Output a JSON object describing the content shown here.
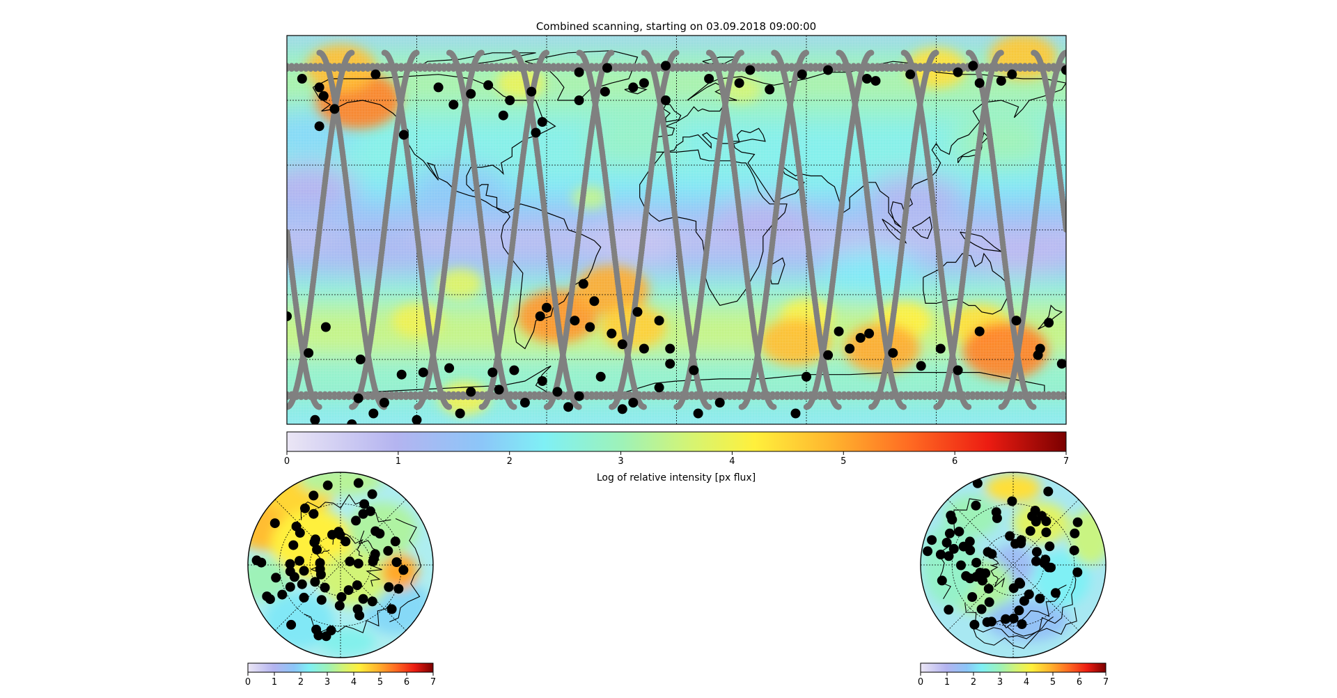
{
  "chart_data": [
    {
      "type": "heatmap",
      "projection": "equirectangular",
      "title": "Combined scanning, starting on 03.09.2018 09:00:00",
      "lon_range": [
        -180,
        180
      ],
      "lat_range": [
        -90,
        90
      ],
      "meridians": [
        -120,
        -60,
        0,
        60,
        120
      ],
      "parallels": [
        -60,
        -30,
        0,
        30,
        60
      ],
      "grid": true,
      "colormap": "jet (white-blended)",
      "colorbar": {
        "label": "Log of relative intensity [px flux]",
        "ticks": [
          "0",
          "1",
          "2",
          "3",
          "4",
          "5",
          "6",
          "7"
        ],
        "range": [
          0,
          7
        ],
        "placement": "bottom"
      },
      "intensity_blobs": [
        {
          "lon": -55,
          "lat": -40,
          "value": 5.2
        },
        {
          "lon": -30,
          "lat": -28,
          "value": 5.0
        },
        {
          "lon": -20,
          "lat": -45,
          "value": 4.6
        },
        {
          "lon": -120,
          "lat": -42,
          "value": 4.0
        },
        {
          "lon": 60,
          "lat": -40,
          "value": 4.1
        },
        {
          "lon": 105,
          "lat": -42,
          "value": 4.2
        },
        {
          "lon": 140,
          "lat": -44,
          "value": 4.4
        },
        {
          "lon": 55,
          "lat": -52,
          "value": 4.8
        },
        {
          "lon": 95,
          "lat": -55,
          "value": 5.0
        },
        {
          "lon": 152,
          "lat": -56,
          "value": 5.4
        },
        {
          "lon": -147,
          "lat": 60,
          "value": 5.4
        },
        {
          "lon": -155,
          "lat": 75,
          "value": 4.8
        },
        {
          "lon": -72,
          "lat": 68,
          "value": 3.9
        },
        {
          "lon": 120,
          "lat": 75,
          "value": 4.4
        },
        {
          "lon": 160,
          "lat": 80,
          "value": 4.7
        },
        {
          "lon": -40,
          "lat": 15,
          "value": 3.4
        },
        {
          "lon": 30,
          "lat": 65,
          "value": 3.6
        },
        {
          "lon": -100,
          "lat": -25,
          "value": 3.8
        },
        {
          "lon": -98,
          "lat": -78,
          "value": 4.0
        }
      ],
      "ground_track": {
        "color": "#808080",
        "passes": 12,
        "inclination_deg": 82
      },
      "detections": [
        [
          -173,
          70
        ],
        [
          -163,
          62
        ],
        [
          -158,
          56
        ],
        [
          -165,
          48
        ],
        [
          -126,
          44
        ],
        [
          -139,
          72
        ],
        [
          -110,
          66
        ],
        [
          -95,
          63
        ],
        [
          -103,
          58
        ],
        [
          -87,
          67
        ],
        [
          -67,
          64
        ],
        [
          -77,
          60
        ],
        [
          -65,
          45
        ],
        [
          -80,
          53
        ],
        [
          -62,
          50
        ],
        [
          -45,
          73
        ],
        [
          -32,
          75
        ],
        [
          -20,
          66
        ],
        [
          -15,
          68
        ],
        [
          -5,
          76
        ],
        [
          15,
          70
        ],
        [
          29,
          68
        ],
        [
          34,
          74
        ],
        [
          43,
          65
        ],
        [
          -33,
          64
        ],
        [
          -5,
          60
        ],
        [
          58,
          72
        ],
        [
          70,
          74
        ],
        [
          88,
          70
        ],
        [
          92,
          69
        ],
        [
          108,
          72
        ],
        [
          130,
          73
        ],
        [
          140,
          68
        ],
        [
          150,
          69
        ],
        [
          180,
          74
        ],
        [
          137,
          76
        ],
        [
          155,
          72
        ],
        [
          -165,
          66
        ],
        [
          -45,
          60
        ],
        [
          -180,
          -40
        ],
        [
          -162,
          -45
        ],
        [
          -170,
          -57
        ],
        [
          -146,
          -60
        ],
        [
          -127,
          -67
        ],
        [
          -147,
          -78
        ],
        [
          -135,
          -80
        ],
        [
          -117,
          -66
        ],
        [
          -105,
          -64
        ],
        [
          -63,
          -40
        ],
        [
          -47,
          -42
        ],
        [
          -43,
          -25
        ],
        [
          -38,
          -33
        ],
        [
          -60,
          -36
        ],
        [
          -30,
          -48
        ],
        [
          -25,
          -53
        ],
        [
          -18,
          -38
        ],
        [
          -8,
          -42
        ],
        [
          -15,
          -55
        ],
        [
          -3,
          -55
        ],
        [
          -40,
          -45
        ],
        [
          -35,
          -68
        ],
        [
          -62,
          -70
        ],
        [
          -75,
          -65
        ],
        [
          -85,
          -66
        ],
        [
          -95,
          -75
        ],
        [
          -82,
          -74
        ],
        [
          -55,
          -75
        ],
        [
          -45,
          -77
        ],
        [
          -8,
          -73
        ],
        [
          -20,
          -80
        ],
        [
          8,
          -65
        ],
        [
          -3,
          -62
        ],
        [
          20,
          -80
        ],
        [
          60,
          -68
        ],
        [
          80,
          -55
        ],
        [
          85,
          -50
        ],
        [
          89,
          -48
        ],
        [
          100,
          -57
        ],
        [
          113,
          -63
        ],
        [
          122,
          -55
        ],
        [
          140,
          -47
        ],
        [
          157,
          -42
        ],
        [
          168,
          -55
        ],
        [
          172,
          -43
        ],
        [
          178,
          -62
        ],
        [
          167,
          -58
        ],
        [
          70,
          -58
        ],
        [
          75,
          -47
        ],
        [
          55,
          -85
        ],
        [
          130,
          -65
        ],
        [
          -150,
          -90
        ],
        [
          -167,
          -88
        ],
        [
          -120,
          -88
        ],
        [
          -100,
          -85
        ],
        [
          -70,
          -80
        ],
        [
          -50,
          -82
        ],
        [
          -25,
          -83
        ],
        [
          10,
          -85
        ],
        [
          -140,
          -85
        ]
      ]
    },
    {
      "type": "heatmap",
      "projection": "south-polar stereographic",
      "colorbar": {
        "ticks": [
          "0",
          "1",
          "2",
          "3",
          "4",
          "5",
          "6",
          "7"
        ],
        "range": [
          0,
          7
        ],
        "placement": "bottom"
      },
      "points_count": 68
    },
    {
      "type": "heatmap",
      "projection": "north-polar stereographic",
      "colorbar": {
        "ticks": [
          "0",
          "1",
          "2",
          "3",
          "4",
          "5",
          "6",
          "7"
        ],
        "range": [
          0,
          7
        ],
        "placement": "bottom"
      },
      "points_count": 72
    }
  ]
}
